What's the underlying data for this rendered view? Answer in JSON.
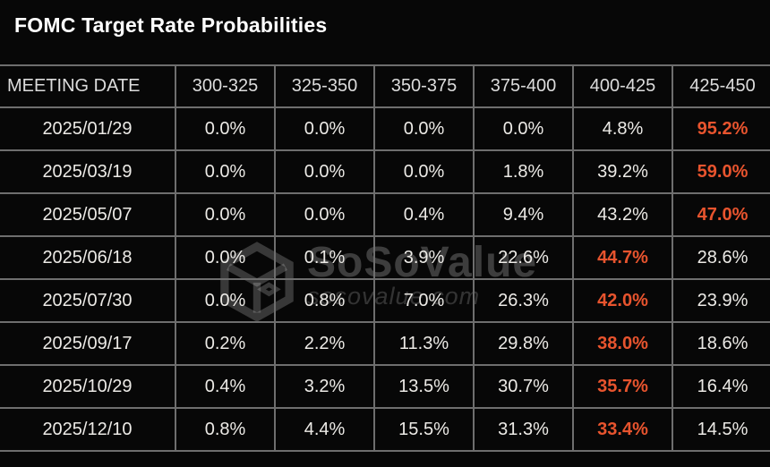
{
  "chart_data": {
    "type": "table",
    "title": "FOMC Target Rate Probabilities",
    "columns": [
      "MEETING DATE",
      "300-325",
      "325-350",
      "350-375",
      "375-400",
      "400-425",
      "425-450"
    ],
    "rows": [
      {
        "date": "2025/01/29",
        "values": [
          "0.0%",
          "0.0%",
          "0.0%",
          "0.0%",
          "4.8%",
          "95.2%"
        ],
        "highlight_index": 5
      },
      {
        "date": "2025/03/19",
        "values": [
          "0.0%",
          "0.0%",
          "0.0%",
          "1.8%",
          "39.2%",
          "59.0%"
        ],
        "highlight_index": 5
      },
      {
        "date": "2025/05/07",
        "values": [
          "0.0%",
          "0.0%",
          "0.4%",
          "9.4%",
          "43.2%",
          "47.0%"
        ],
        "highlight_index": 5
      },
      {
        "date": "2025/06/18",
        "values": [
          "0.0%",
          "0.1%",
          "3.9%",
          "22.6%",
          "44.7%",
          "28.6%"
        ],
        "highlight_index": 4
      },
      {
        "date": "2025/07/30",
        "values": [
          "0.0%",
          "0.8%",
          "7.0%",
          "26.3%",
          "42.0%",
          "23.9%"
        ],
        "highlight_index": 4
      },
      {
        "date": "2025/09/17",
        "values": [
          "0.2%",
          "2.2%",
          "11.3%",
          "29.8%",
          "38.0%",
          "18.6%"
        ],
        "highlight_index": 4
      },
      {
        "date": "2025/10/29",
        "values": [
          "0.4%",
          "3.2%",
          "13.5%",
          "30.7%",
          "35.7%",
          "16.4%"
        ],
        "highlight_index": 4
      },
      {
        "date": "2025/12/10",
        "values": [
          "0.8%",
          "4.4%",
          "15.5%",
          "31.3%",
          "33.4%",
          "14.5%"
        ],
        "highlight_index": 4
      }
    ]
  },
  "watermark": {
    "brand": "SoSoValue",
    "domain": "sosovalue.com",
    "logo": "cube-logo-icon"
  },
  "colors": {
    "background": "#070707",
    "grid_line": "#6e6e6e",
    "value_text": "#eceae6",
    "header_text": "#dcdcdc",
    "highlight_orange": "#e8542e"
  }
}
